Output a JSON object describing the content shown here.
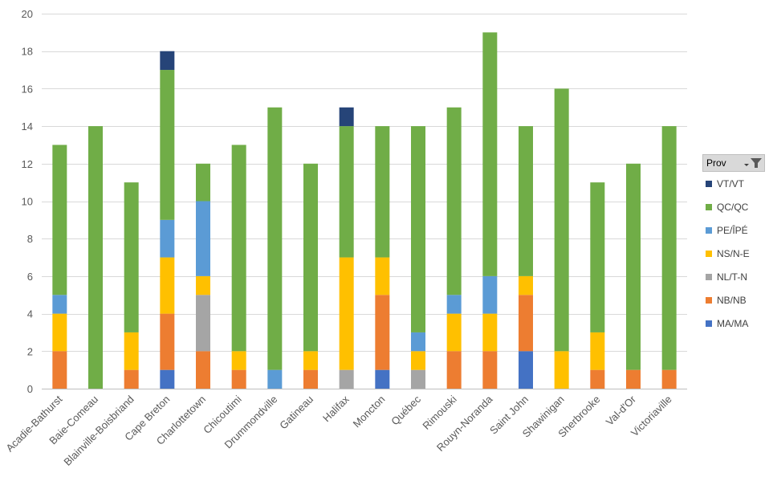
{
  "chart_data": {
    "type": "bar",
    "stacked": true,
    "categories": [
      "Acadie-Bathurst",
      "Baie-Comeau",
      "Blainville-Boisbriand",
      "Cape Breton",
      "Charlottetown",
      "Chicoutimi",
      "Drummondville",
      "Gatineau",
      "Halifax",
      "Moncton",
      "Québec",
      "Rimouski",
      "Rouyn-Noranda",
      "Saint John",
      "Shawinigan",
      "Sherbrooke",
      "Val-d'Or",
      "Victoriaville"
    ],
    "series": [
      {
        "name": "MA/MA",
        "color": "#4472c4",
        "values": [
          0,
          0,
          0,
          1,
          0,
          0,
          0,
          0,
          0,
          1,
          0,
          0,
          0,
          2,
          0,
          0,
          0,
          0
        ]
      },
      {
        "name": "NB/NB",
        "color": "#ed7d31",
        "values": [
          2,
          0,
          1,
          3,
          2,
          1,
          0,
          1,
          0,
          4,
          0,
          2,
          2,
          3,
          0,
          1,
          1,
          1
        ]
      },
      {
        "name": "NL/T-N",
        "color": "#a5a5a5",
        "values": [
          0,
          0,
          0,
          0,
          3,
          0,
          0,
          0,
          1,
          0,
          1,
          0,
          0,
          0,
          0,
          0,
          0,
          0
        ]
      },
      {
        "name": "NS/N-E",
        "color": "#ffc000",
        "values": [
          2,
          0,
          2,
          3,
          1,
          1,
          0,
          1,
          6,
          2,
          1,
          2,
          2,
          1,
          2,
          2,
          0,
          0
        ]
      },
      {
        "name": "PE/ÎPÉ",
        "color": "#5b9bd5",
        "values": [
          1,
          0,
          0,
          2,
          4,
          0,
          1,
          0,
          0,
          0,
          1,
          1,
          2,
          0,
          0,
          0,
          0,
          0
        ]
      },
      {
        "name": "QC/QC",
        "color": "#70ad47",
        "values": [
          8,
          14,
          8,
          8,
          2,
          11,
          14,
          10,
          7,
          7,
          11,
          10,
          13,
          8,
          14,
          8,
          11,
          13
        ]
      },
      {
        "name": "VT/VT",
        "color": "#264478",
        "values": [
          0,
          0,
          0,
          1,
          0,
          0,
          0,
          0,
          1,
          0,
          0,
          0,
          0,
          0,
          0,
          0,
          0,
          0
        ]
      }
    ],
    "ylim": [
      0,
      20
    ],
    "yticks": [
      "0",
      "2",
      "4",
      "6",
      "8",
      "10",
      "12",
      "14",
      "16",
      "18",
      "20"
    ],
    "grid": true,
    "legend": {
      "placement": "right",
      "header": "Prov",
      "order": [
        "VT/VT",
        "QC/QC",
        "PE/ÎPÉ",
        "NS/N-E",
        "NL/T-N",
        "NB/NB",
        "MA/MA"
      ]
    }
  }
}
